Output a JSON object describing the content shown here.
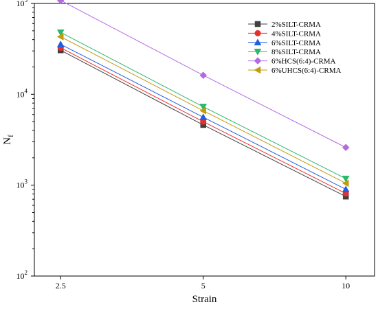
{
  "chart_data": {
    "type": "line",
    "xlabel": "Strain",
    "ylabel": "N",
    "ylabel_subscript": "f",
    "x": [
      2.5,
      5,
      10
    ],
    "x_tick_labels": [
      "2.5",
      "5",
      "10"
    ],
    "x_scale": "log",
    "xlim": [
      2.2,
      11.5
    ],
    "y_scale": "log",
    "ylim": [
      100,
      100000
    ],
    "y_ticks": [
      {
        "base": "10",
        "exp": "2",
        "value": 100
      },
      {
        "base": "10",
        "exp": "3",
        "value": 1000
      },
      {
        "base": "10",
        "exp": "4",
        "value": 10000
      },
      {
        "base": "10",
        "exp": "5",
        "value": 100000
      }
    ],
    "legend_position": "top-right",
    "grid": false,
    "series": [
      {
        "name": "2%SILT-CRMA",
        "color": "#404040",
        "marker": "square",
        "values": [
          30500,
          4600,
          750
        ]
      },
      {
        "name": "4%SILT-CRMA",
        "color": "#e8302a",
        "marker": "circle",
        "values": [
          32500,
          5000,
          810
        ]
      },
      {
        "name": "6%SILT-CRMA",
        "color": "#1f5fe0",
        "marker": "triangle-up",
        "values": [
          35500,
          5600,
          900
        ]
      },
      {
        "name": "8%SILT-CRMA",
        "color": "#2ab86a",
        "marker": "triangle-down",
        "values": [
          48000,
          7300,
          1180
        ]
      },
      {
        "name": "6%HCS(6:4)-CRMA",
        "color": "#b36ae2",
        "marker": "diamond",
        "values": [
          108000,
          16200,
          2600
        ]
      },
      {
        "name": "6%UHCS(6:4)-CRMA",
        "color": "#c29a0c",
        "marker": "triangle-left",
        "values": [
          43000,
          6600,
          1050
        ]
      }
    ]
  }
}
